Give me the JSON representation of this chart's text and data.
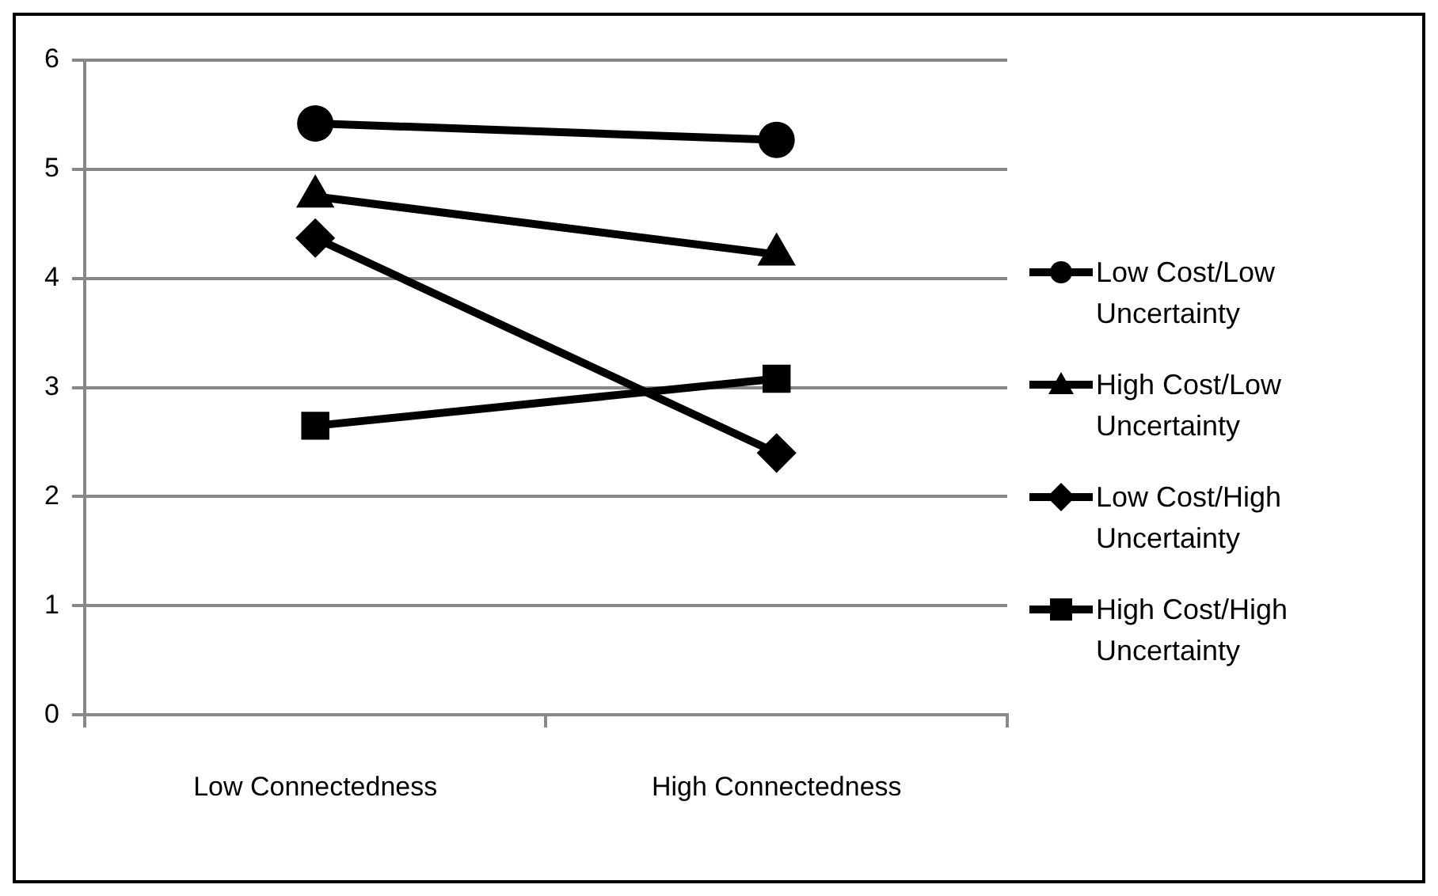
{
  "chart_data": {
    "type": "line",
    "categories": [
      "Low Connectedness",
      "High Connectedness"
    ],
    "series": [
      {
        "name": "Low Cost/Low Uncertainty",
        "color": "#000000",
        "marker": "circle",
        "values": [
          5.42,
          5.27
        ]
      },
      {
        "name": "High Cost/Low Uncertainty",
        "color": "#000000",
        "marker": "triangle",
        "values": [
          4.75,
          4.22
        ]
      },
      {
        "name": "Low Cost/High Uncertainty",
        "color": "#000000",
        "marker": "diamond",
        "values": [
          4.37,
          2.4
        ]
      },
      {
        "name": "High Cost/High Uncertainty",
        "color": "#000000",
        "marker": "square",
        "values": [
          2.65,
          3.08
        ]
      }
    ],
    "ylim": [
      0,
      6
    ],
    "yticks": [
      0,
      1,
      2,
      3,
      4,
      5,
      6
    ],
    "grid": "y",
    "legend": "right",
    "line_style": "solid"
  }
}
